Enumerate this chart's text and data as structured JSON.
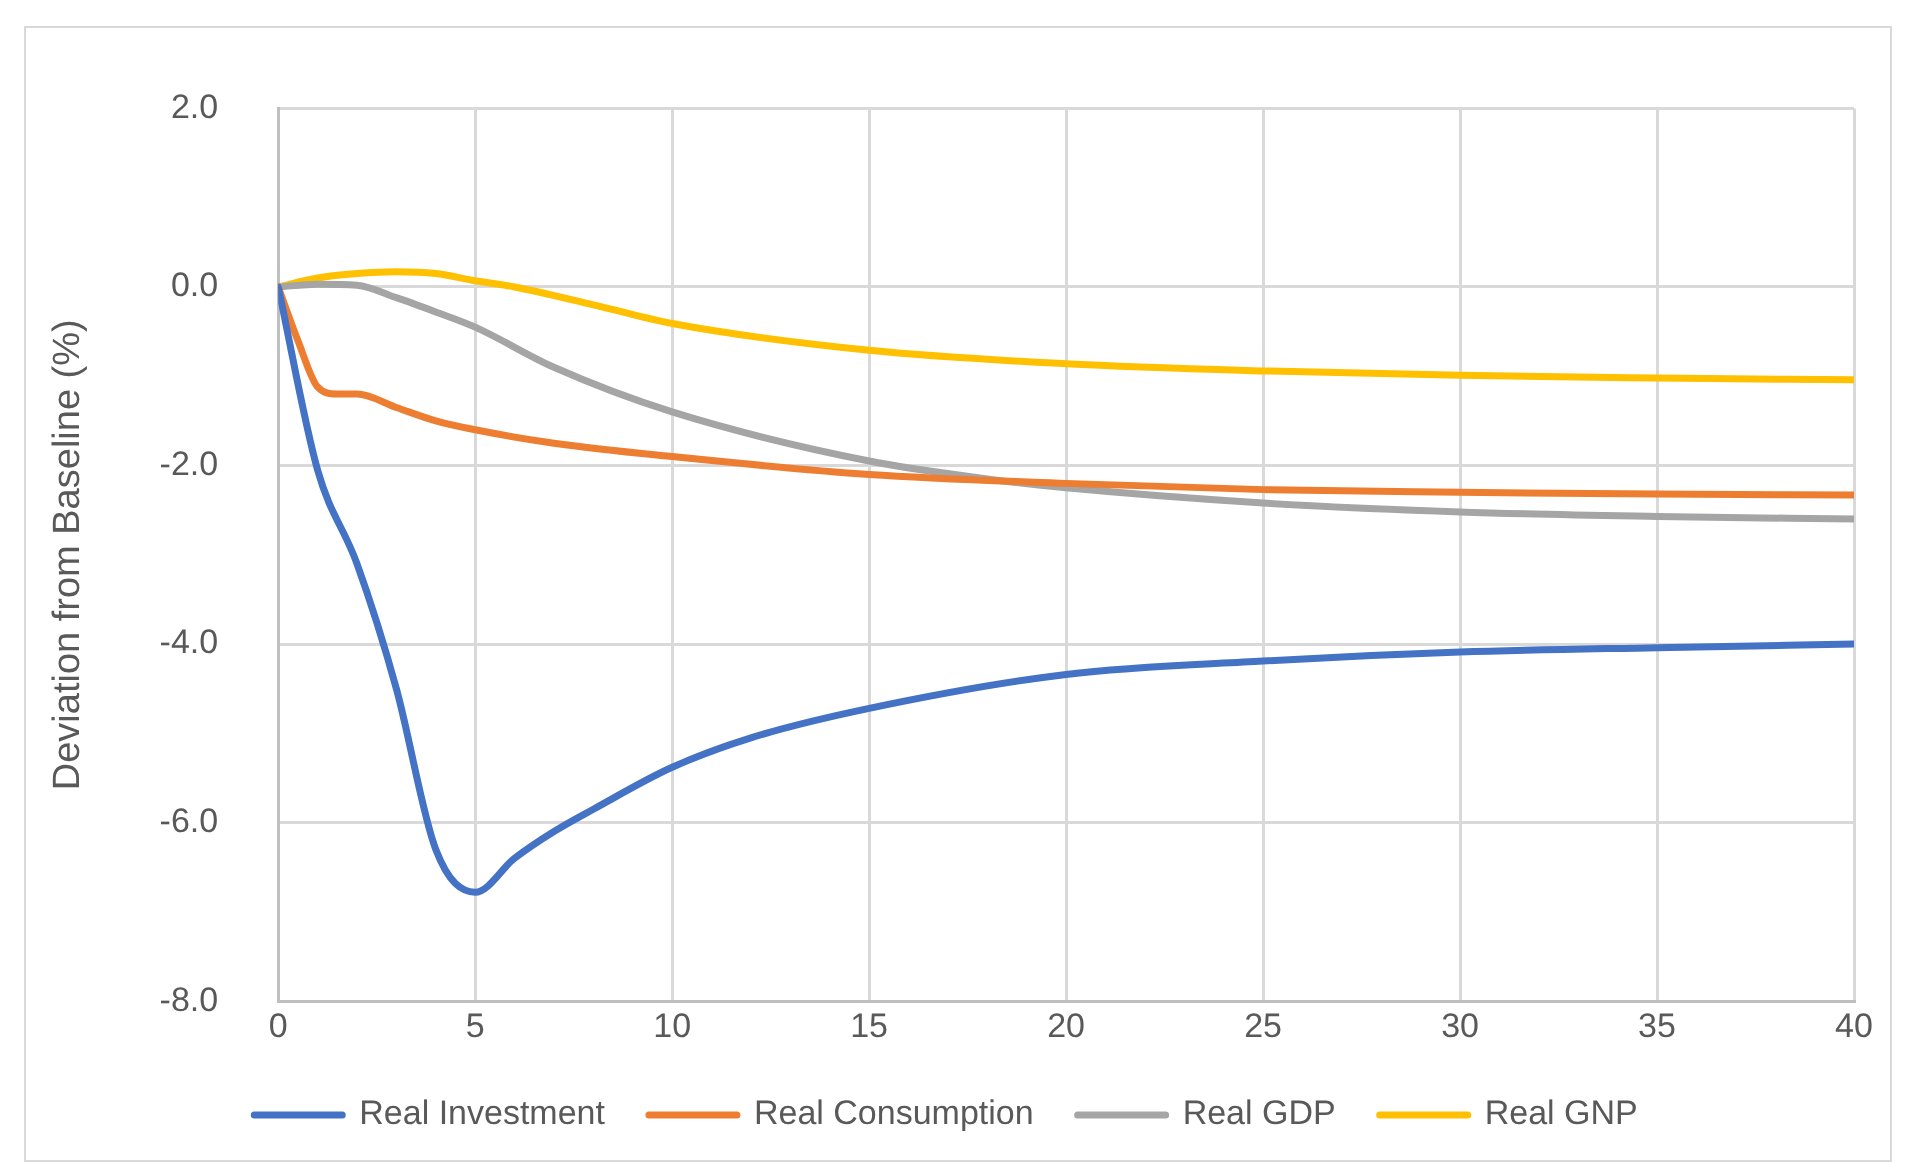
{
  "chart_data": {
    "type": "line",
    "ylabel": "Deviation from Baseline (%)",
    "xlim": [
      0,
      40
    ],
    "xticks": [
      0,
      5,
      10,
      15,
      20,
      25,
      30,
      35,
      40
    ],
    "ylim": [
      -8,
      2
    ],
    "yticks": [
      {
        "value": -8,
        "label": "-8.0"
      },
      {
        "value": -6,
        "label": "-6.0"
      },
      {
        "value": -4,
        "label": "-4.0"
      },
      {
        "value": -2,
        "label": "-2.0"
      },
      {
        "value": 0,
        "label": "0.0"
      },
      {
        "value": 2,
        "label": "2.0"
      }
    ],
    "grid": true,
    "legend": "bottom",
    "marker": "none",
    "line_style": "solid",
    "series": [
      {
        "name": "Real Investment",
        "color": "#4472c4",
        "x": [
          0,
          1,
          2,
          3,
          4,
          5,
          6,
          7,
          8,
          10,
          12,
          15,
          20,
          25,
          30,
          35,
          40
        ],
        "values": [
          0,
          -2.05,
          -3.1,
          -4.5,
          -6.3,
          -6.78,
          -6.4,
          -6.1,
          -5.85,
          -5.38,
          -5.05,
          -4.72,
          -4.34,
          -4.19,
          -4.09,
          -4.04,
          -4.0
        ]
      },
      {
        "name": "Real Consumption",
        "color": "#ed7d31",
        "x": [
          0,
          0.5,
          1,
          1.5,
          2,
          3,
          4,
          5,
          7,
          10,
          15,
          20,
          25,
          30,
          35,
          40
        ],
        "values": [
          0,
          -0.6,
          -1.12,
          -1.2,
          -1.2,
          -1.35,
          -1.5,
          -1.6,
          -1.75,
          -1.9,
          -2.1,
          -2.2,
          -2.27,
          -2.3,
          -2.32,
          -2.33
        ]
      },
      {
        "name": "Real GDP",
        "color": "#a5a5a5",
        "x": [
          0,
          1,
          2,
          3,
          4,
          5,
          7,
          10,
          15,
          18,
          20,
          25,
          30,
          35,
          40
        ],
        "values": [
          0,
          0.03,
          0.02,
          -0.12,
          -0.28,
          -0.45,
          -0.9,
          -1.4,
          -1.95,
          -2.15,
          -2.25,
          -2.42,
          -2.52,
          -2.57,
          -2.6
        ]
      },
      {
        "name": "Real GNP",
        "color": "#ffc000",
        "x": [
          0,
          1,
          2,
          3,
          4,
          5,
          6,
          8,
          10,
          15,
          20,
          25,
          30,
          35,
          40
        ],
        "values": [
          0,
          0.1,
          0.15,
          0.17,
          0.15,
          0.07,
          0,
          -0.2,
          -0.41,
          -0.71,
          -0.86,
          -0.94,
          -0.99,
          -1.02,
          -1.04
        ]
      }
    ]
  }
}
